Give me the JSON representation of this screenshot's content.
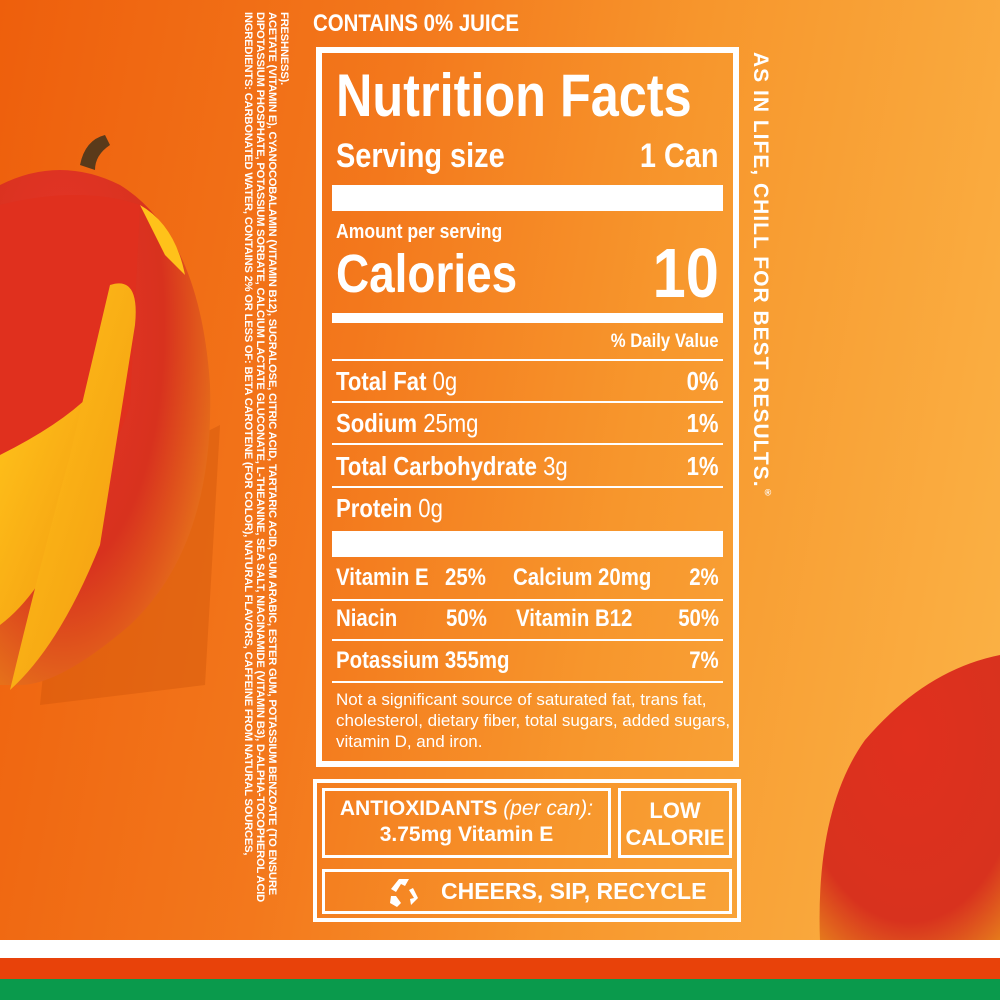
{
  "ingredients": "Ingredients: Carbonated water, contains 2% or less of: beta carotene (for color), natural flavors, caffeine from natural sources, dipotassium phosphate, potassium sorbate, calcium lactate gluconate, L-theanine, sea salt, niacinamide (vitamin B3), d-alpha-tocopherol acid acetate (vitamin E), cyanocobalamin (vitamin B12), sucralose, citric acid, tartaric acid, gum arabic, ester gum, potassium benzoate (to ensure freshness).",
  "juice_note": "CONTAINS 0% JUICE",
  "tagline": "AS IN LIFE, CHILL FOR BEST RESULTS.",
  "tagline_mark": "®",
  "nutrition": {
    "title": "Nutrition Facts",
    "serving_label": "Serving size",
    "serving_value": "1 Can",
    "amount_label": "Amount per serving",
    "calories_label": "Calories",
    "calories_value": "10",
    "dv_header": "% Daily Value",
    "nutrients": [
      {
        "name": "Total Fat",
        "amount": "0g",
        "dv": "0%"
      },
      {
        "name": "Sodium",
        "amount": "25mg",
        "dv": "1%"
      },
      {
        "name": "Total Carbohydrate",
        "amount": "3g",
        "dv": "1%"
      },
      {
        "name": "Protein",
        "amount": "0g",
        "dv": ""
      }
    ],
    "vitamins": [
      {
        "a_name": "Vitamin E",
        "a_dv": "25%",
        "b_name": "Calcium 20mg",
        "b_dv": "2%"
      },
      {
        "a_name": "Niacin",
        "a_dv": "50%",
        "b_name": "Vitamin B12",
        "b_dv": "50%"
      }
    ],
    "potassium": {
      "name": "Potassium 355mg",
      "dv": "7%"
    },
    "footnote": "Not a significant source of saturated fat, trans fat, cholesterol, dietary fiber, total sugars, added sugars, vitamin D, and iron."
  },
  "badges": {
    "antioxidants_label": "ANTIOXIDANTS",
    "antioxidants_qualifier": "(per can):",
    "antioxidants_value": "3.75mg Vitamin E",
    "low": "LOW",
    "calorie": "CALORIE",
    "recycle_icon": "recycle-icon",
    "recycle_text": "CHEERS, SIP, RECYCLE"
  },
  "colors": {
    "stripe_white": "#ffffff",
    "stripe_red": "#e8420a",
    "stripe_green": "#0a9a4c",
    "background_left": "#ee5f0c",
    "background_right": "#fbb447"
  }
}
